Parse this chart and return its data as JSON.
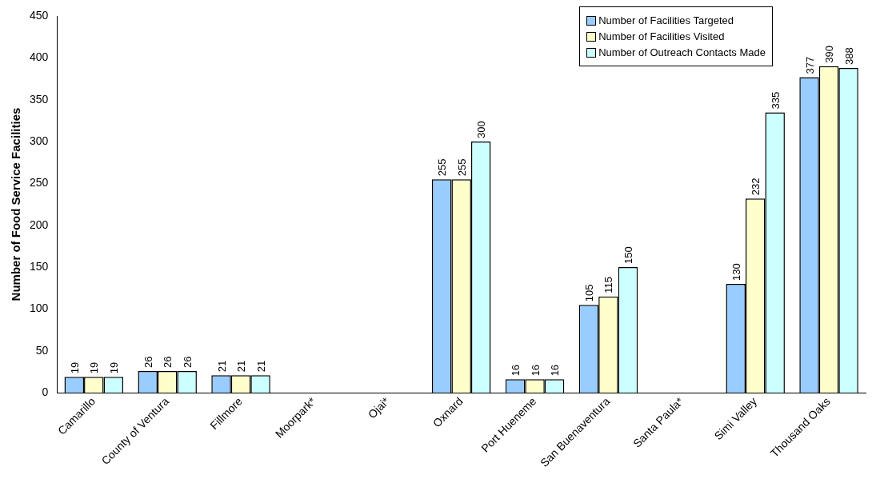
{
  "chart_data": {
    "type": "bar",
    "ylabel": "Number of Food Service Facilities",
    "categories": [
      "Camarillo",
      "County of Ventura",
      "Fillmore",
      "Moorpark*",
      "Ojai*",
      "Oxnard",
      "Port Hueneme",
      "San Buenaventura",
      "Santa Paula*",
      "Simi Valley",
      "Thousand Oaks"
    ],
    "series": [
      {
        "name": "Number of Facilities Targeted",
        "color": "#99ccff",
        "values": [
          19,
          26,
          21,
          null,
          null,
          255,
          16,
          105,
          null,
          130,
          377
        ]
      },
      {
        "name": "Number of Facilities Visited",
        "color": "#ffffcc",
        "values": [
          19,
          26,
          21,
          null,
          null,
          255,
          16,
          115,
          null,
          232,
          390
        ]
      },
      {
        "name": "Number of Outreach Contacts Made",
        "color": "#ccffff",
        "values": [
          19,
          26,
          21,
          null,
          null,
          300,
          16,
          150,
          null,
          335,
          388
        ]
      }
    ],
    "ylim": [
      0,
      450
    ],
    "yticks": [
      0,
      50,
      100,
      150,
      200,
      250,
      300,
      350,
      400,
      450
    ],
    "grid": false,
    "legend": "top right",
    "data_labels": true
  }
}
